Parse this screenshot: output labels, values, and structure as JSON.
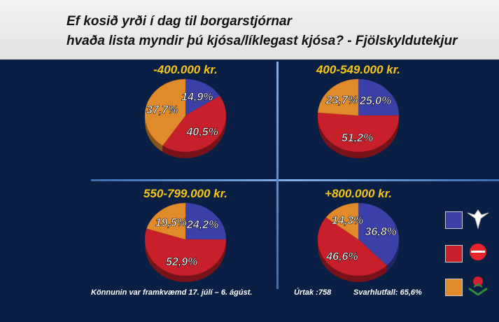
{
  "title": {
    "line1": "Ef kosið yrði í dag til borgarstjórnar",
    "line2": "hvaða lista myndir þú kjósa/líklegast kjósa? - Fjölskyldutekjur"
  },
  "colors": {
    "blue": "#3b3fa8",
    "red": "#c8202a",
    "orange": "#e08a2a",
    "title_income": "#f5c518",
    "background": "#0a1f44"
  },
  "chart_data": [
    {
      "type": "pie",
      "title": "-400.000 kr.",
      "categories": [
        "blue",
        "red",
        "orange"
      ],
      "values": [
        14.9,
        40.5,
        37.7
      ],
      "labels": [
        "14,9%",
        "40,5%",
        "37,7%"
      ]
    },
    {
      "type": "pie",
      "title": "400-549.000 kr.",
      "categories": [
        "blue",
        "red",
        "orange"
      ],
      "values": [
        25.0,
        51.2,
        23.7
      ],
      "labels": [
        "25,0%",
        "51,2%",
        "23,7%"
      ]
    },
    {
      "type": "pie",
      "title": "550-799.000 kr.",
      "categories": [
        "blue",
        "red",
        "orange"
      ],
      "values": [
        24.2,
        52.9,
        19.5
      ],
      "labels": [
        "24,2%",
        "52,9%",
        "19,5%"
      ]
    },
    {
      "type": "pie",
      "title": "+800.000 kr.",
      "categories": [
        "blue",
        "red",
        "orange"
      ],
      "values": [
        36.8,
        46.6,
        14.3
      ],
      "labels": [
        "36,8%",
        "46,6%",
        "14,3%"
      ]
    }
  ],
  "legend": [
    {
      "color": "#3b3fa8",
      "icon": "falcon-logo-icon"
    },
    {
      "color": "#c8202a",
      "icon": "samfylkingin-logo-icon"
    },
    {
      "color": "#e08a2a",
      "icon": "rose-logo-icon"
    }
  ],
  "footer": {
    "period": "Könnunin var framkvæmd 17. júlí – 6. ágúst.",
    "sample": "Úrtak :758",
    "response": "Svarhlutfall: 65,6%"
  }
}
